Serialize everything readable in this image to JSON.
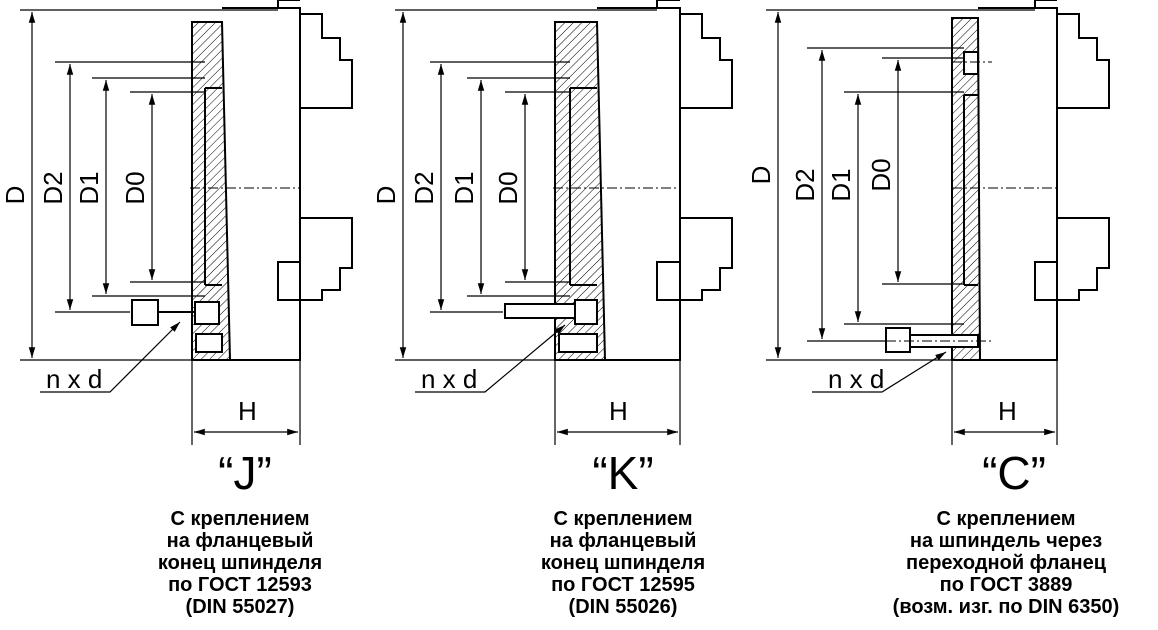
{
  "dimensions": {
    "D": "D",
    "D2": "D2",
    "D1": "D1",
    "D0": "D0",
    "H": "H",
    "holes": "n x d"
  },
  "variants": [
    {
      "label": "“J”",
      "caption": [
        "С креплением",
        "на фланцевый",
        "конец шпинделя",
        "по ГОСТ 12593",
        "(DIN 55027)"
      ]
    },
    {
      "label": "“K”",
      "caption": [
        "С креплением",
        "на фланцевый",
        "конец шпинделя",
        "по ГОСТ 12595",
        "(DIN 55026)"
      ]
    },
    {
      "label": "“C”",
      "caption": [
        "С креплением",
        "на шпиндель через",
        "переходной фланец",
        "по ГОСТ 3889",
        "(возм. изг. по DIN 6350)"
      ]
    }
  ]
}
